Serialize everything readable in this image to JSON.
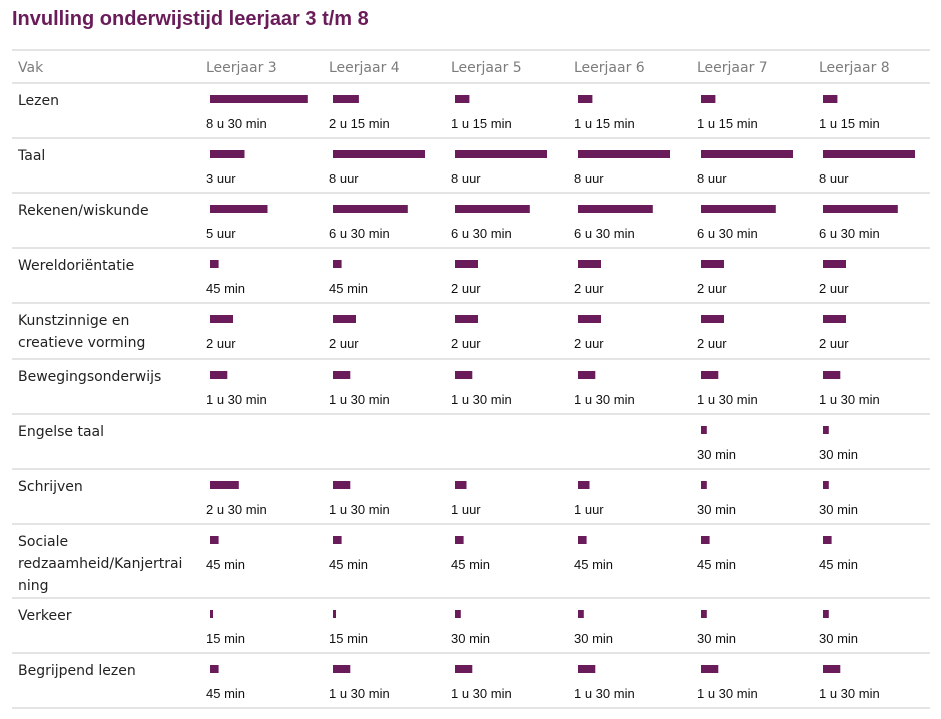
{
  "title": "Invulling onderwijstijd leerjaar 3 t/m 8",
  "colors": {
    "title": "#6a1b59",
    "bar": "#6a1b59",
    "rule": "#c8c8c8"
  },
  "chart_data": {
    "type": "table",
    "unit": "minutes",
    "subject_header": "Vak",
    "columns": [
      "Leerjaar 3",
      "Leerjaar 4",
      "Leerjaar 5",
      "Leerjaar 6",
      "Leerjaar 7",
      "Leerjaar 8"
    ],
    "rows": [
      {
        "subject": "Lezen",
        "values": [
          510,
          135,
          75,
          75,
          75,
          75
        ],
        "labels": [
          "8 u 30 min",
          "2 u 15 min",
          "1 u 15 min",
          "1 u 15 min",
          "1 u 15 min",
          "1 u 15 min"
        ]
      },
      {
        "subject": "Taal",
        "values": [
          180,
          480,
          480,
          480,
          480,
          480
        ],
        "labels": [
          "3 uur",
          "8 uur",
          "8 uur",
          "8 uur",
          "8 uur",
          "8 uur"
        ]
      },
      {
        "subject": "Rekenen/wiskunde",
        "values": [
          300,
          390,
          390,
          390,
          390,
          390
        ],
        "labels": [
          "5 uur",
          "6 u 30 min",
          "6 u 30 min",
          "6 u 30 min",
          "6 u 30 min",
          "6 u 30 min"
        ]
      },
      {
        "subject": "Wereldoriëntatie",
        "values": [
          45,
          45,
          120,
          120,
          120,
          120
        ],
        "labels": [
          "45 min",
          "45 min",
          "2 uur",
          "2 uur",
          "2 uur",
          "2 uur"
        ]
      },
      {
        "subject": [
          "Kunstzinnige en",
          "creatieve vorming"
        ],
        "values": [
          120,
          120,
          120,
          120,
          120,
          120
        ],
        "labels": [
          "2 uur",
          "2 uur",
          "2 uur",
          "2 uur",
          "2 uur",
          "2 uur"
        ]
      },
      {
        "subject": "Bewegingsonderwijs",
        "values": [
          90,
          90,
          90,
          90,
          90,
          90
        ],
        "labels": [
          "1 u 30 min",
          "1 u 30 min",
          "1 u 30 min",
          "1 u 30 min",
          "1 u 30 min",
          "1 u 30 min"
        ]
      },
      {
        "subject": "Engelse taal",
        "values": [
          null,
          null,
          null,
          null,
          30,
          30
        ],
        "labels": [
          "",
          "",
          "",
          "",
          "30 min",
          "30 min"
        ]
      },
      {
        "subject": "Schrijven",
        "values": [
          150,
          90,
          60,
          60,
          30,
          30
        ],
        "labels": [
          "2 u 30 min",
          "1 u 30 min",
          "1 uur",
          "1 uur",
          "30 min",
          "30 min"
        ]
      },
      {
        "subject": [
          "Sociale",
          "redzaamheid/Kanjertrai",
          "ning"
        ],
        "values": [
          45,
          45,
          45,
          45,
          45,
          45
        ],
        "labels": [
          "45 min",
          "45 min",
          "45 min",
          "45 min",
          "45 min",
          "45 min"
        ]
      },
      {
        "subject": "Verkeer",
        "values": [
          15,
          15,
          30,
          30,
          30,
          30
        ],
        "labels": [
          "15 min",
          "15 min",
          "30 min",
          "30 min",
          "30 min",
          "30 min"
        ]
      },
      {
        "subject": "Begrijpend lezen",
        "values": [
          45,
          90,
          90,
          90,
          90,
          90
        ],
        "labels": [
          "45 min",
          "1 u 30 min",
          "1 u 30 min",
          "1 u 30 min",
          "1 u 30 min",
          "1 u 30 min"
        ]
      }
    ]
  }
}
